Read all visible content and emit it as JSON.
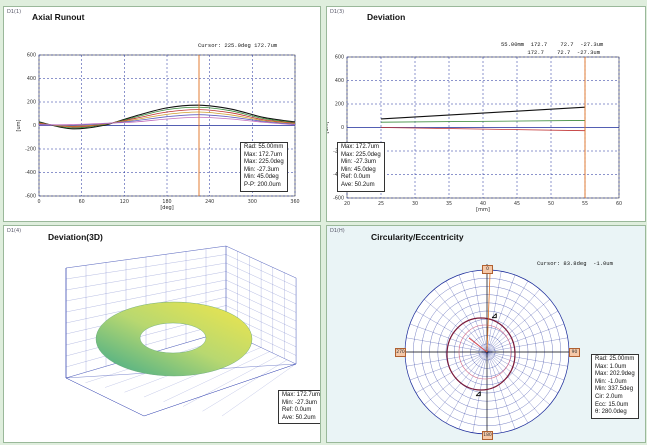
{
  "panels": {
    "p1": {
      "id": "D1(1)",
      "title": "Axial Runout",
      "cursor": "Cursor: 225.0deg 172.7um",
      "stats": [
        "Rad: 55.00mm",
        "Max: 172.7um",
        "Max: 225.0deg",
        "Min: -27.3um",
        "Min: 45.0deg",
        "P-P: 200.0um"
      ],
      "y_unit": "[um]",
      "x_unit": "[deg]",
      "y_ticks": [
        "600",
        "400",
        "200",
        "0",
        "-200",
        "-400",
        "-600"
      ],
      "x_ticks": [
        "0",
        "60",
        "120",
        "180",
        "240",
        "300",
        "360"
      ]
    },
    "p2": {
      "id": "D1(3)",
      "title": "Deviation",
      "cursor_line1": "55.00mm  172.7    72.7  -27.3um",
      "cursor_line2": "        172.7    72.7  -27.3um",
      "stats": [
        "Max: 172.7um",
        "Max: 225.0deg",
        "Min: -27.3um",
        "Min: 45.0deg",
        "Ref:    0.0um",
        "Ave:  50.2um"
      ],
      "y_unit": "[um]",
      "x_unit": "[mm]",
      "y_ticks": [
        "600",
        "400",
        "200",
        "0",
        "-200",
        "-400",
        "-600"
      ],
      "x_ticks": [
        "20",
        "25",
        "30",
        "35",
        "40",
        "45",
        "50",
        "55",
        "60"
      ]
    },
    "p3": {
      "id": "D1(4)",
      "title": "Deviation(3D)",
      "stats": [
        "Max: 172.7um",
        "Min: -27.3um",
        "Ref:    0.0um",
        "Ave:  50.2um"
      ]
    },
    "p4": {
      "id": "D1(H)",
      "title": "Circularity/Eccentricity",
      "cursor": "Cursor: 83.8deg  -1.0um",
      "stats": [
        "Rad: 25.00mm",
        "Max:    1.0um",
        "Max: 202.9deg",
        "Min:  -1.0um",
        "Min: 337.5deg",
        "Cir:    2.0um",
        "Ecc:  15.0um",
        "θ:  280.0deg"
      ],
      "markers": [
        "0",
        "90",
        "180",
        "270"
      ]
    }
  },
  "colors": {
    "background": "#dfeedd",
    "cursor_line": "#e07020",
    "grid": "#1a2a9a"
  },
  "chart_data": [
    {
      "type": "line",
      "title": "Axial Runout",
      "xlabel": "[deg]",
      "ylabel": "[um]",
      "xlim": [
        0,
        360
      ],
      "ylim": [
        -600,
        600
      ],
      "x": [
        0,
        45,
        90,
        135,
        180,
        225,
        270,
        315,
        360
      ],
      "series": [
        {
          "values": [
            30,
            -27.3,
            0,
            80,
            150,
            172.7,
            140,
            70,
            30
          ]
        },
        {
          "values": [
            25,
            -20,
            5,
            70,
            135,
            155,
            125,
            60,
            25
          ]
        },
        {
          "values": [
            20,
            -12,
            10,
            60,
            115,
            135,
            108,
            50,
            20
          ]
        },
        {
          "values": [
            15,
            -5,
            12,
            50,
            95,
            115,
            90,
            42,
            15
          ]
        },
        {
          "values": [
            10,
            2,
            15,
            40,
            75,
            92,
            72,
            35,
            10
          ]
        },
        {
          "values": [
            5,
            8,
            18,
            30,
            55,
            70,
            55,
            28,
            5
          ]
        }
      ],
      "cursor_x": 225,
      "grid": true
    },
    {
      "type": "line",
      "title": "Deviation",
      "xlabel": "[mm]",
      "ylabel": "[um]",
      "xlim": [
        20,
        60
      ],
      "ylim": [
        -600,
        600
      ],
      "x": [
        25,
        55
      ],
      "series": [
        {
          "values": [
            72.7,
            172.7
          ]
        },
        {
          "values": [
            45,
            60
          ]
        },
        {
          "values": [
            0,
            -27.3
          ]
        }
      ],
      "cursor_x": 55,
      "grid": true
    }
  ]
}
